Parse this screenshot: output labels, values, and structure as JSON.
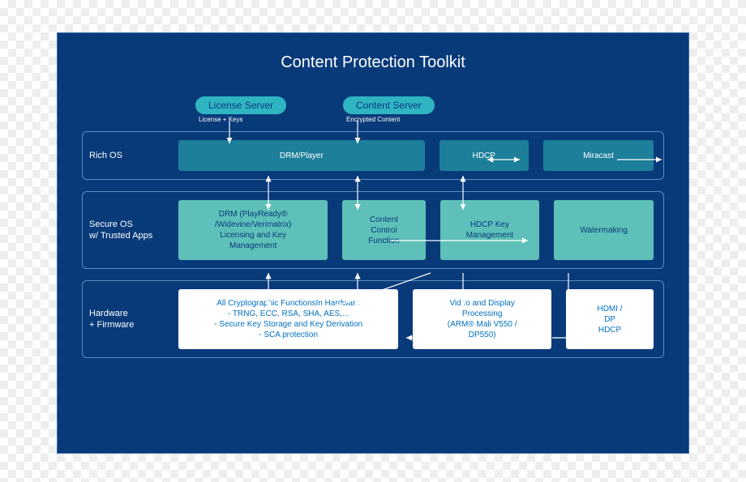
{
  "title": "Content Protection Toolkit",
  "servers": [
    {
      "label": "License Server",
      "sub": "License + Keys"
    },
    {
      "label": "Content Server",
      "sub": "Encrypted Content"
    }
  ],
  "layers": {
    "rich": {
      "label": "Rich OS",
      "boxes": {
        "drm": "DRM/Player",
        "hdcp": "HDCP",
        "miracast": "Miracast"
      }
    },
    "secure": {
      "label": "Secure OS\nw/ Trusted Apps",
      "boxes": {
        "drmlic": "DRM (PlayReady®\n/Widevine/Verimatrix)\nLicensing and Key\nManagement",
        "ccf": "Content\nControl\nFunction",
        "hdcpkey": "HDCP Key\nManagement",
        "wm": "Watermaking"
      }
    },
    "hw": {
      "label": "Hardware\n+ Firmware",
      "boxes": {
        "crypto": "All Cryptographic FunctionsIn Hardware\n- TRNG, ECC, RSA, SHA, AES,...\n- Secure Key Storage and Key Derivation\n- SCA protection",
        "video": "Video and Display\nProcessing\n(ARM® Mali V550 /\nDP550)",
        "hdmi": "HDMI /\nDP\nHDCP"
      }
    }
  },
  "colors": {
    "panel_bg": "#083a7a",
    "teal_dark": "#1d7f9a",
    "teal_light": "#5ec0b8",
    "server_pill": "#2fb4c2",
    "white_box_text": "#0070c0",
    "border": "#5a8ac0",
    "arrow": "#ffffff"
  },
  "diagram_type": "flowchart"
}
